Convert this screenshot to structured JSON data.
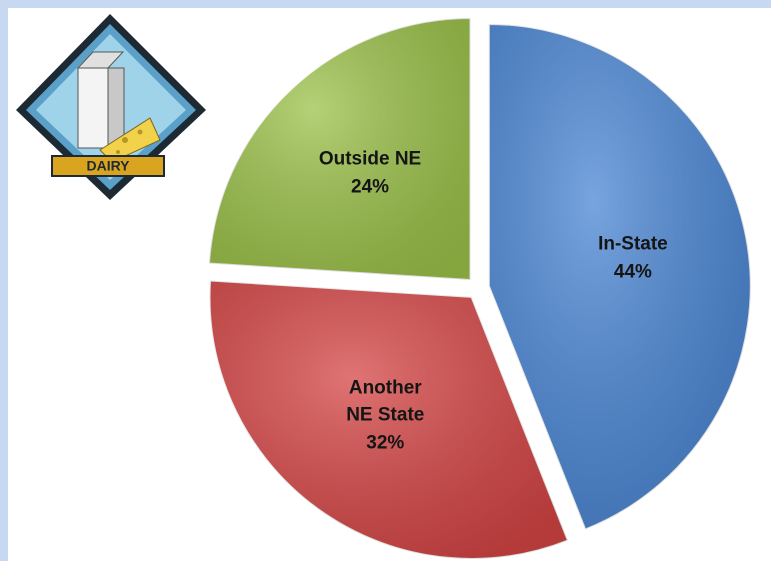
{
  "chart_data": {
    "type": "pie",
    "categories": [
      "In-State",
      "Another NE State",
      "Outside NE"
    ],
    "values": [
      44,
      32,
      24
    ],
    "value_labels": [
      "44%",
      "32%",
      "24%"
    ],
    "colors": [
      "#4a86d4",
      "#d54545",
      "#9cc24a"
    ]
  },
  "logo": {
    "label": "DAIRY"
  }
}
